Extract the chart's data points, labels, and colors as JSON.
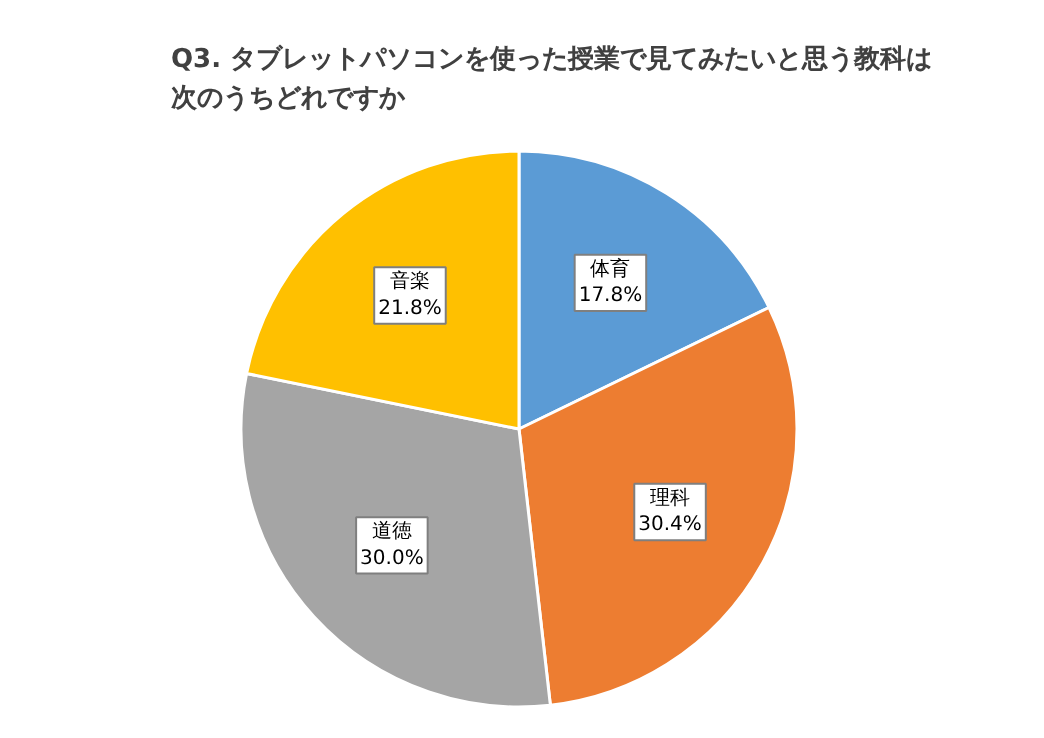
{
  "chart_data": {
    "type": "pie",
    "title": "Q3. タブレットパソコンを使った授業で見てみたいと思う教科は次のうちどれですか",
    "categories": [
      "体育",
      "理科",
      "道徳",
      "音楽"
    ],
    "values": [
      17.8,
      30.4,
      30.0,
      21.8
    ],
    "colors": [
      "#5b9bd5",
      "#ed7d31",
      "#a5a5a5",
      "#ffc000"
    ],
    "value_labels": [
      "17.8%",
      "30.4%",
      "30.0%",
      "21.8%"
    ]
  }
}
